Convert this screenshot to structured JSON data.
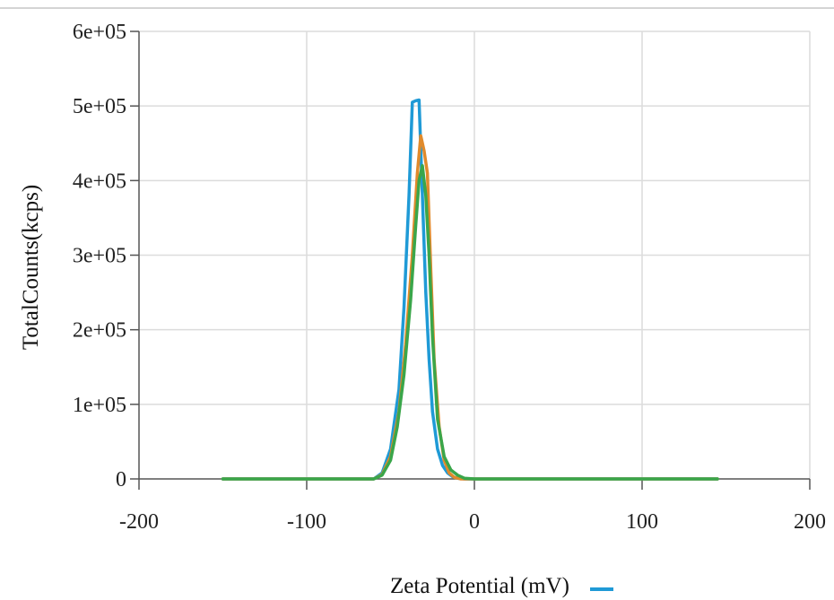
{
  "chart_data": {
    "type": "line",
    "title": "",
    "xlabel": "Zeta Potential (mV)",
    "ylabel": "TotalCounts(kcps)",
    "xlim": [
      -200,
      200
    ],
    "ylim": [
      0,
      600000
    ],
    "x_ticks": [
      -200,
      -100,
      0,
      100,
      200
    ],
    "x_tick_labels": [
      "-200",
      "-100",
      "0",
      "100",
      "200"
    ],
    "y_ticks": [
      0,
      100000,
      200000,
      300000,
      400000,
      500000,
      600000
    ],
    "y_tick_labels": [
      "0",
      "1e+05",
      "2e+05",
      "3e+05",
      "4e+05",
      "5e+05",
      "6e+05"
    ],
    "grid": true,
    "legend": "bottom-center",
    "series": [
      {
        "color": "#1f9ad6",
        "x": [
          -150,
          -60,
          -55,
          -50,
          -45,
          -42,
          -39,
          -37,
          -35,
          -33,
          -31,
          -29,
          -27,
          -25,
          -22,
          -19,
          -16,
          -13,
          -10,
          -6,
          0,
          145
        ],
        "y": [
          0,
          0,
          8000,
          40000,
          120000,
          230000,
          380000,
          505000,
          507000,
          508000,
          380000,
          250000,
          160000,
          90000,
          40000,
          18000,
          8000,
          3000,
          1000,
          0,
          0,
          0
        ]
      },
      {
        "color": "#e08a2c",
        "x": [
          -150,
          -60,
          -55,
          -50,
          -45,
          -41,
          -37,
          -34,
          -32,
          -30,
          -28,
          -26,
          -24,
          -21,
          -18,
          -15,
          -12,
          -8,
          0,
          145
        ],
        "y": [
          0,
          0,
          6000,
          30000,
          90000,
          180000,
          300000,
          410000,
          460000,
          440000,
          410000,
          280000,
          160000,
          70000,
          25000,
          8000,
          2000,
          0,
          0,
          0
        ]
      },
      {
        "color": "#3aa64a",
        "x": [
          -150,
          -60,
          -55,
          -50,
          -46,
          -42,
          -38,
          -35,
          -33,
          -31,
          -29,
          -27,
          -25,
          -22,
          -18,
          -14,
          -10,
          -6,
          0,
          145
        ],
        "y": [
          0,
          0,
          5000,
          25000,
          70000,
          140000,
          240000,
          340000,
          400000,
          420000,
          380000,
          300000,
          190000,
          80000,
          30000,
          12000,
          5000,
          1000,
          0,
          0
        ]
      }
    ]
  }
}
